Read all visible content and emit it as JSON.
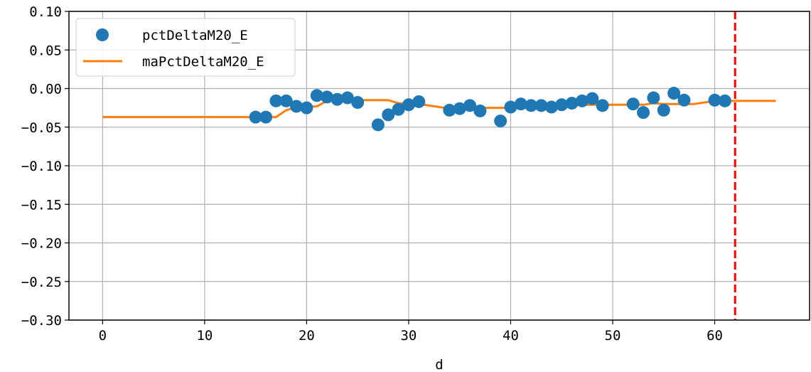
{
  "chart_data": {
    "type": "scatter",
    "xlabel": "d",
    "ylabel": "",
    "xlim": [
      -3.3,
      69.3
    ],
    "ylim": [
      -0.3,
      0.1
    ],
    "x_ticks": [
      0,
      10,
      20,
      30,
      40,
      50,
      60
    ],
    "y_ticks": [
      0.1,
      0.05,
      0.0,
      -0.05,
      -0.1,
      -0.15,
      -0.2,
      -0.25,
      -0.3
    ],
    "x_tick_labels": [
      "0",
      "10",
      "20",
      "30",
      "40",
      "50",
      "60"
    ],
    "y_tick_labels": [
      "0.10",
      "0.05",
      "0.00",
      "−0.05",
      "−0.10",
      "−0.15",
      "−0.20",
      "−0.25",
      "−0.30"
    ],
    "grid": true,
    "legend_position": "top-left",
    "series": [
      {
        "name": "pctDeltaM20_E",
        "type": "scatter",
        "color": "#1f77b4",
        "x": [
          15,
          16,
          17,
          18,
          19,
          20,
          21,
          22,
          23,
          24,
          25,
          27,
          28,
          29,
          30,
          31,
          34,
          35,
          36,
          37,
          39,
          40,
          41,
          42,
          43,
          44,
          45,
          46,
          47,
          48,
          49,
          52,
          53,
          54,
          55,
          56,
          57,
          60,
          61
        ],
        "y": [
          -0.037,
          -0.037,
          -0.016,
          -0.016,
          -0.023,
          -0.025,
          -0.009,
          -0.011,
          -0.014,
          -0.012,
          -0.018,
          -0.047,
          -0.034,
          -0.027,
          -0.021,
          -0.017,
          -0.028,
          -0.026,
          -0.022,
          -0.029,
          -0.042,
          -0.024,
          -0.02,
          -0.022,
          -0.022,
          -0.024,
          -0.021,
          -0.019,
          -0.016,
          -0.013,
          -0.022,
          -0.02,
          -0.031,
          -0.012,
          -0.028,
          -0.006,
          -0.015,
          -0.015,
          -0.016
        ]
      },
      {
        "name": "maPctDeltaM20_E",
        "type": "line",
        "color": "#ff7f0e",
        "x": [
          0,
          15,
          16,
          17,
          18,
          19,
          20,
          21,
          22,
          23,
          24,
          25,
          26,
          27,
          28,
          29,
          30,
          31,
          32,
          33,
          34,
          35,
          36,
          37,
          38,
          39,
          40,
          41,
          42,
          43,
          44,
          45,
          46,
          47,
          48,
          49,
          50,
          51,
          52,
          53,
          54,
          55,
          56,
          57,
          58,
          59,
          60,
          61,
          62,
          63,
          64,
          65,
          66
        ],
        "y": [
          -0.037,
          -0.037,
          -0.037,
          -0.037,
          -0.028,
          -0.024,
          -0.024,
          -0.023,
          -0.016,
          -0.015,
          -0.015,
          -0.015,
          -0.015,
          -0.015,
          -0.015,
          -0.019,
          -0.02,
          -0.02,
          -0.022,
          -0.024,
          -0.026,
          -0.026,
          -0.025,
          -0.025,
          -0.025,
          -0.025,
          -0.025,
          -0.024,
          -0.024,
          -0.024,
          -0.023,
          -0.023,
          -0.022,
          -0.021,
          -0.021,
          -0.021,
          -0.021,
          -0.021,
          -0.021,
          -0.021,
          -0.019,
          -0.02,
          -0.02,
          -0.02,
          -0.02,
          -0.018,
          -0.016,
          -0.016,
          -0.016,
          -0.016,
          -0.016,
          -0.016,
          -0.016
        ]
      }
    ],
    "vline": {
      "x": 62,
      "color": "#ff0000",
      "style": "dashed"
    }
  }
}
